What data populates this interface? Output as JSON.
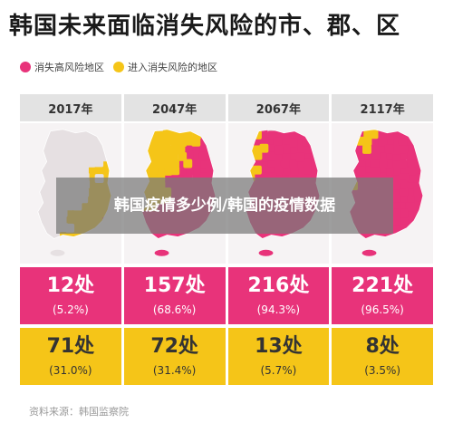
{
  "title": "韩国未来面临消失风险的市、郡、区",
  "legend": [
    {
      "label": "消失高风险地区",
      "color": "#e8337a"
    },
    {
      "label": "进入消失风险的地区",
      "color": "#f5c518"
    }
  ],
  "overlay_text": "韩国疫情多少例/韩国的疫情数据",
  "source": "资料来源：韩国监察院",
  "colors": {
    "high_risk": "#e8337a",
    "entering_risk": "#f5c518",
    "neutral": "#e6e0e2"
  },
  "chart_data": {
    "type": "table",
    "title": "韩国未来面临消失风险的市、郡、区",
    "categories": [
      "2017年",
      "2047年",
      "2067年",
      "2117年"
    ],
    "series": [
      {
        "name": "消失高风险地区",
        "values": [
          12,
          157,
          216,
          221
        ],
        "labels": [
          "12处",
          "157处",
          "216处",
          "221处"
        ],
        "percents": [
          "(5.2%)",
          "(68.6%)",
          "(94.3%)",
          "(96.5%)"
        ]
      },
      {
        "name": "进入消失风险的地区",
        "values": [
          71,
          72,
          13,
          8
        ],
        "labels": [
          "71处",
          "72处",
          "13处",
          "8处"
        ],
        "percents": [
          "(31.0%)",
          "(31.4%)",
          "(5.7%)",
          "(3.5%)"
        ]
      }
    ],
    "map_share": {
      "high_risk": [
        0.052,
        0.686,
        0.943,
        0.965
      ],
      "entering_risk": [
        0.31,
        0.314,
        0.057,
        0.035
      ]
    }
  }
}
